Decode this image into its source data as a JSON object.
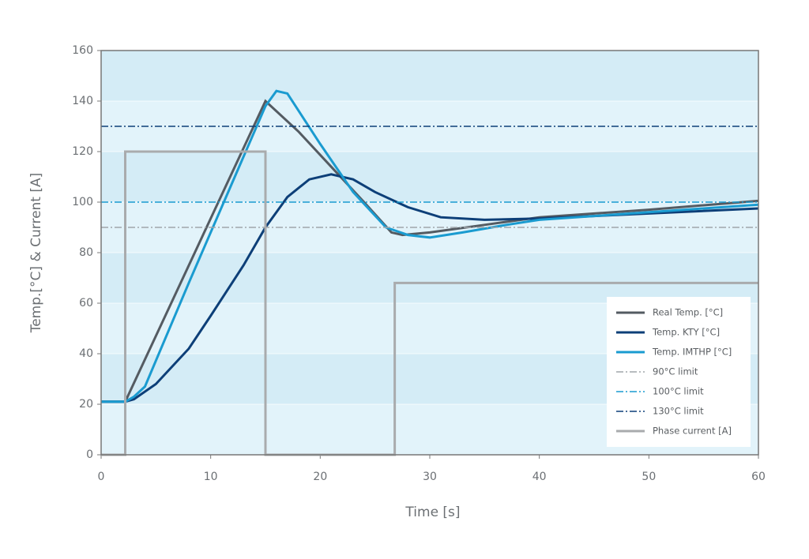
{
  "chart_data": {
    "type": "line",
    "xlabel": "Time [s]",
    "ylabel": "Temp.[°C] & Current [A]",
    "xlim": [
      0,
      60
    ],
    "xticks": [
      0,
      10,
      20,
      30,
      40,
      50,
      60
    ],
    "ylim": [
      0,
      160
    ],
    "yticks": [
      0,
      20,
      40,
      60,
      80,
      100,
      120,
      140,
      160
    ],
    "grid": true,
    "legend": "lower right",
    "series": [
      {
        "name": "Real Temp. [°C]",
        "color": "#545b62",
        "dash": "solid",
        "x": [
          0,
          2.2,
          15,
          18,
          21,
          24,
          26.5,
          27.5,
          30,
          35,
          40,
          50,
          60
        ],
        "values": [
          21,
          21,
          140,
          128,
          114,
          100,
          88,
          87,
          88,
          91,
          94,
          97,
          100.5
        ]
      },
      {
        "name": "Temp. KTY [°C]",
        "color": "#0d3f78",
        "dash": "solid",
        "x": [
          0,
          2.2,
          3,
          5,
          8,
          10,
          13,
          15,
          17,
          19,
          21,
          23,
          25,
          28,
          31,
          35,
          40,
          50,
          60
        ],
        "values": [
          21,
          21,
          22,
          28,
          42,
          55,
          75,
          90,
          102,
          109,
          111,
          109,
          104,
          98,
          94,
          93,
          93.5,
          95.5,
          97.5
        ]
      },
      {
        "name": "Temp. IMTHP [°C]",
        "color": "#1a9bd0",
        "dash": "solid",
        "x": [
          0,
          2.2,
          3,
          4,
          8,
          12,
          15,
          16,
          17,
          20,
          23,
          26,
          28,
          30,
          33,
          37,
          40,
          50,
          60
        ],
        "values": [
          21,
          21,
          23,
          27,
          68,
          108,
          138,
          144,
          143,
          123,
          104,
          90,
          87,
          86,
          88,
          91,
          93,
          96,
          99
        ]
      },
      {
        "name": "90°C limit",
        "color": "#a0a6aa",
        "dash": "dashdot",
        "x": [
          0,
          60
        ],
        "values": [
          90,
          90
        ]
      },
      {
        "name": "100°C limit",
        "color": "#1a9bd0",
        "dash": "dashdot",
        "x": [
          0,
          60
        ],
        "values": [
          100,
          100
        ]
      },
      {
        "name": "130°C limit",
        "color": "#0d3f78",
        "dash": "dashdot",
        "x": [
          0,
          60
        ],
        "values": [
          130,
          130
        ]
      },
      {
        "name": "Phase current [A]",
        "color": "#a9abad",
        "dash": "solid",
        "x": [
          0,
          2.2,
          2.2,
          15,
          15,
          26.8,
          26.8,
          60
        ],
        "values": [
          0,
          0,
          120,
          120,
          0,
          0,
          68,
          68
        ]
      }
    ]
  }
}
